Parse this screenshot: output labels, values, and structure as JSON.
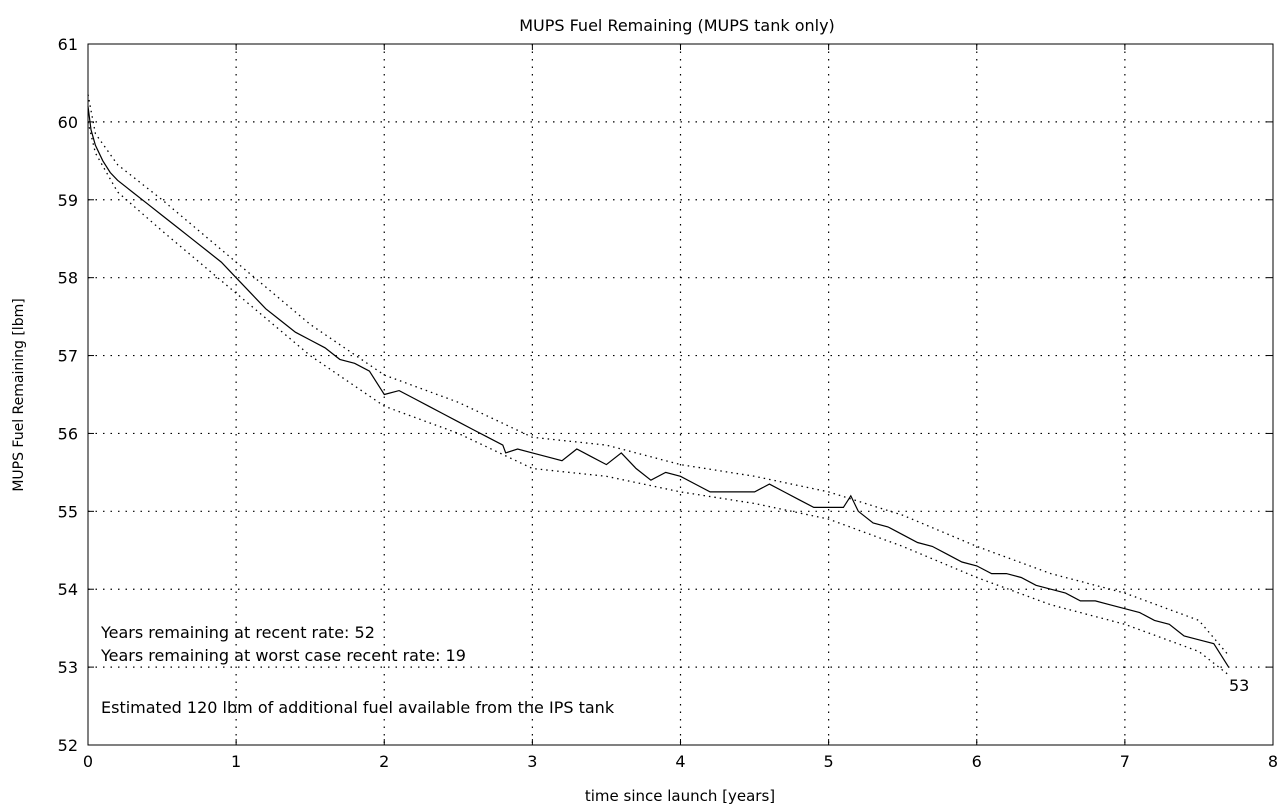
{
  "chart_data": {
    "type": "line",
    "title": "MUPS Fuel Remaining (MUPS tank only)",
    "xlabel": "time since launch [years]",
    "ylabel": "MUPS Fuel Remaining [lbm]",
    "xlim": [
      0,
      8
    ],
    "ylim": [
      52,
      61
    ],
    "xticks": [
      "0",
      "1",
      "2",
      "3",
      "4",
      "5",
      "6",
      "7",
      "8"
    ],
    "yticks": [
      "52",
      "53",
      "54",
      "55",
      "56",
      "57",
      "58",
      "59",
      "60",
      "61"
    ],
    "grid": true,
    "end_label": "53",
    "annotations": [
      "Years remaining at recent rate: 52",
      "Years remaining at worst case recent rate: 19",
      "Estimated 120 lbm of additional fuel available from the IPS tank"
    ],
    "series": [
      {
        "style": "solid",
        "x": [
          0.0,
          0.02,
          0.05,
          0.1,
          0.15,
          0.2,
          0.3,
          0.4,
          0.5,
          0.6,
          0.7,
          0.8,
          0.9,
          1.0,
          1.1,
          1.2,
          1.3,
          1.4,
          1.5,
          1.6,
          1.7,
          1.8,
          1.9,
          2.0,
          2.1,
          2.2,
          2.3,
          2.4,
          2.5,
          2.6,
          2.7,
          2.8,
          2.82,
          2.9,
          3.0,
          3.1,
          3.2,
          3.3,
          3.4,
          3.5,
          3.6,
          3.7,
          3.8,
          3.9,
          4.0,
          4.1,
          4.2,
          4.3,
          4.4,
          4.5,
          4.6,
          4.7,
          4.8,
          4.9,
          5.0,
          5.1,
          5.15,
          5.2,
          5.3,
          5.4,
          5.5,
          5.6,
          5.7,
          5.8,
          5.9,
          6.0,
          6.1,
          6.2,
          6.3,
          6.4,
          6.5,
          6.6,
          6.7,
          6.8,
          6.9,
          7.0,
          7.1,
          7.2,
          7.3,
          7.4,
          7.5,
          7.6,
          7.7
        ],
        "y": [
          60.2,
          59.9,
          59.7,
          59.5,
          59.35,
          59.25,
          59.1,
          58.95,
          58.8,
          58.65,
          58.5,
          58.35,
          58.2,
          58.0,
          57.8,
          57.6,
          57.45,
          57.3,
          57.2,
          57.1,
          56.95,
          56.9,
          56.8,
          56.5,
          56.55,
          56.45,
          56.35,
          56.25,
          56.15,
          56.05,
          55.95,
          55.85,
          55.75,
          55.8,
          55.75,
          55.7,
          55.65,
          55.8,
          55.7,
          55.6,
          55.75,
          55.55,
          55.4,
          55.5,
          55.45,
          55.35,
          55.25,
          55.25,
          55.25,
          55.25,
          55.35,
          55.25,
          55.15,
          55.05,
          55.05,
          55.05,
          55.2,
          55.0,
          54.85,
          54.8,
          54.7,
          54.6,
          54.55,
          54.45,
          54.35,
          54.3,
          54.2,
          54.2,
          54.15,
          54.05,
          54.0,
          53.95,
          53.85,
          53.85,
          53.8,
          53.75,
          53.7,
          53.6,
          53.55,
          53.4,
          53.35,
          53.3,
          53.0
        ]
      },
      {
        "style": "dotted",
        "x": [
          0.0,
          0.05,
          0.2,
          0.5,
          1.0,
          1.5,
          2.0,
          2.5,
          3.0,
          3.5,
          4.0,
          4.5,
          5.0,
          5.5,
          6.0,
          6.5,
          7.0,
          7.5,
          7.7
        ],
        "y": [
          60.35,
          59.85,
          59.45,
          59.0,
          58.2,
          57.4,
          56.75,
          56.4,
          55.95,
          55.85,
          55.6,
          55.45,
          55.25,
          54.95,
          54.55,
          54.2,
          53.95,
          53.6,
          53.15
        ]
      },
      {
        "style": "dotted",
        "x": [
          0.0,
          0.05,
          0.2,
          0.5,
          1.0,
          1.5,
          2.0,
          2.5,
          3.0,
          3.5,
          4.0,
          4.5,
          5.0,
          5.5,
          6.0,
          6.5,
          7.0,
          7.5,
          7.7
        ],
        "y": [
          60.0,
          59.6,
          59.1,
          58.6,
          57.8,
          57.0,
          56.35,
          56.0,
          55.55,
          55.45,
          55.25,
          55.1,
          54.9,
          54.55,
          54.15,
          53.8,
          53.55,
          53.2,
          52.9
        ]
      }
    ]
  }
}
